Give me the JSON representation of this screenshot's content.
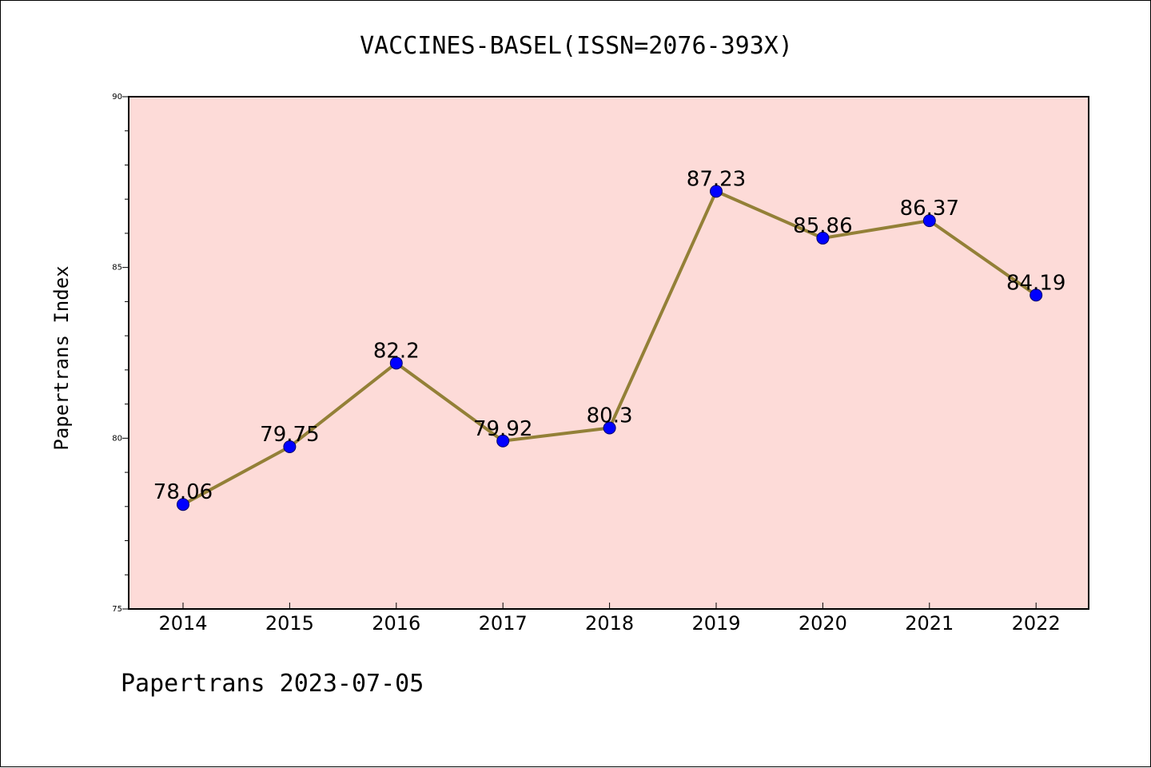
{
  "chart_data": {
    "type": "line",
    "title": "VACCINES-BASEL(ISSN=2076-393X)",
    "ylabel": "Papertrans Index",
    "xlabel": "",
    "footer": "Papertrans 2023-07-05",
    "categories": [
      "2014",
      "2015",
      "2016",
      "2017",
      "2018",
      "2019",
      "2020",
      "2021",
      "2022"
    ],
    "values": [
      78.06,
      79.75,
      82.2,
      79.92,
      80.3,
      87.23,
      85.86,
      86.37,
      84.19
    ],
    "data_labels": [
      "78.06",
      "79.75",
      "82.2",
      "79.92",
      "80.3",
      "87.23",
      "85.86",
      "86.37",
      "84.19"
    ],
    "ylim": [
      75,
      90
    ],
    "yticks": [
      "75",
      "80",
      "85",
      "90"
    ],
    "grid": false,
    "legend": "none",
    "colors": {
      "plot_background": "#fddbd8",
      "line": "#938037",
      "marker": "#0000ff"
    }
  }
}
